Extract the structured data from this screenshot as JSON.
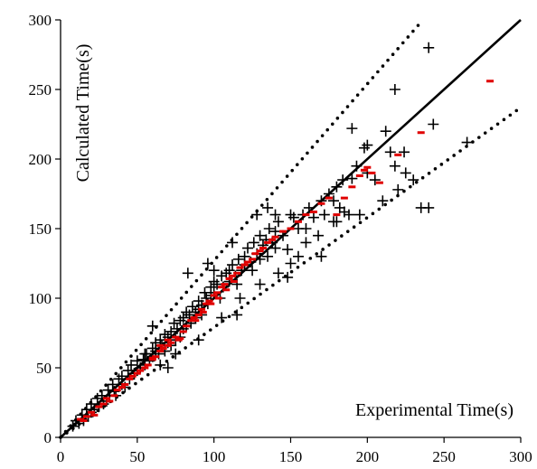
{
  "chart_data": {
    "type": "scatter",
    "xlabel": "Experimental Time(s)",
    "ylabel": "Calculated Time(s)",
    "xlim": [
      0,
      300
    ],
    "ylim": [
      0,
      300
    ],
    "x_ticks": [
      0,
      50,
      100,
      150,
      200,
      250,
      300
    ],
    "y_ticks": [
      0,
      50,
      100,
      150,
      200,
      250,
      300
    ],
    "grid": false,
    "legend": "none",
    "reference_lines": [
      {
        "style": "solid",
        "slope": 1.0,
        "color": "#000000"
      },
      {
        "style": "dotted",
        "slope": 1.27,
        "color": "#000000"
      },
      {
        "style": "dotted",
        "slope": 0.79,
        "color": "#000000"
      }
    ],
    "series": [
      {
        "marker": "plus",
        "color": "#000000",
        "points": [
          [
            8,
            8
          ],
          [
            10,
            12
          ],
          [
            12,
            10
          ],
          [
            14,
            16
          ],
          [
            15,
            12
          ],
          [
            17,
            20
          ],
          [
            18,
            15
          ],
          [
            20,
            24
          ],
          [
            20,
            18
          ],
          [
            22,
            20
          ],
          [
            24,
            28
          ],
          [
            25,
            22
          ],
          [
            27,
            30
          ],
          [
            28,
            24
          ],
          [
            30,
            26
          ],
          [
            31,
            34
          ],
          [
            32,
            30
          ],
          [
            34,
            38
          ],
          [
            35,
            33
          ],
          [
            36,
            30
          ],
          [
            38,
            42
          ],
          [
            40,
            44
          ],
          [
            40,
            38
          ],
          [
            42,
            36
          ],
          [
            44,
            48
          ],
          [
            45,
            42
          ],
          [
            46,
            52
          ],
          [
            48,
            46
          ],
          [
            50,
            55
          ],
          [
            50,
            48
          ],
          [
            52,
            50
          ],
          [
            54,
            56
          ],
          [
            55,
            52
          ],
          [
            56,
            60
          ],
          [
            58,
            55
          ],
          [
            60,
            64
          ],
          [
            60,
            58
          ],
          [
            62,
            68
          ],
          [
            62,
            62
          ],
          [
            64,
            60
          ],
          [
            65,
            70
          ],
          [
            66,
            66
          ],
          [
            68,
            74
          ],
          [
            68,
            62
          ],
          [
            70,
            72
          ],
          [
            70,
            68
          ],
          [
            72,
            76
          ],
          [
            72,
            66
          ],
          [
            74,
            82
          ],
          [
            75,
            70
          ],
          [
            76,
            78
          ],
          [
            78,
            84
          ],
          [
            78,
            72
          ],
          [
            80,
            86
          ],
          [
            80,
            78
          ],
          [
            82,
            90
          ],
          [
            82,
            80
          ],
          [
            84,
            88
          ],
          [
            85,
            82
          ],
          [
            86,
            94
          ],
          [
            88,
            90
          ],
          [
            88,
            86
          ],
          [
            90,
            98
          ],
          [
            90,
            92
          ],
          [
            92,
            95
          ],
          [
            92,
            88
          ],
          [
            94,
            104
          ],
          [
            95,
            100
          ],
          [
            96,
            96
          ],
          [
            98,
            108
          ],
          [
            98,
            102
          ],
          [
            100,
            112
          ],
          [
            100,
            104
          ],
          [
            102,
            110
          ],
          [
            104,
            100
          ],
          [
            105,
            116
          ],
          [
            106,
            108
          ],
          [
            108,
            118
          ],
          [
            110,
            112
          ],
          [
            110,
            120
          ],
          [
            112,
            124
          ],
          [
            114,
            116
          ],
          [
            115,
            110
          ],
          [
            116,
            128
          ],
          [
            118,
            120
          ],
          [
            120,
            130
          ],
          [
            120,
            124
          ],
          [
            122,
            136
          ],
          [
            124,
            126
          ],
          [
            125,
            120
          ],
          [
            126,
            140
          ],
          [
            128,
            132
          ],
          [
            130,
            145
          ],
          [
            130,
            128
          ],
          [
            132,
            138
          ],
          [
            134,
            142
          ],
          [
            135,
            130
          ],
          [
            136,
            150
          ],
          [
            138,
            140
          ],
          [
            140,
            148
          ],
          [
            140,
            136
          ],
          [
            142,
            155
          ],
          [
            145,
            145
          ],
          [
            148,
            135
          ],
          [
            150,
            160
          ],
          [
            152,
            158
          ],
          [
            155,
            150
          ],
          [
            155,
            130
          ],
          [
            158,
            160
          ],
          [
            160,
            140
          ],
          [
            162,
            165
          ],
          [
            165,
            158
          ],
          [
            168,
            145
          ],
          [
            170,
            170
          ],
          [
            172,
            160
          ],
          [
            175,
            175
          ],
          [
            178,
            170
          ],
          [
            180,
            180
          ],
          [
            182,
            165
          ],
          [
            184,
            185
          ],
          [
            185,
            162
          ],
          [
            188,
            160
          ],
          [
            190,
            186
          ],
          [
            193,
            195
          ],
          [
            195,
            160
          ],
          [
            198,
            208
          ],
          [
            200,
            190
          ],
          [
            205,
            185
          ],
          [
            210,
            170
          ],
          [
            215,
            205
          ],
          [
            218,
            195
          ],
          [
            220,
            178
          ],
          [
            225,
            190
          ],
          [
            230,
            185
          ],
          [
            235,
            165
          ],
          [
            240,
            165
          ],
          [
            240,
            280
          ],
          [
            243,
            225
          ],
          [
            148,
            115
          ],
          [
            135,
            165
          ],
          [
            96,
            125
          ],
          [
            112,
            140
          ],
          [
            128,
            160
          ],
          [
            180,
            155
          ],
          [
            170,
            130
          ],
          [
            115,
            88
          ],
          [
            60,
            80
          ],
          [
            55,
            60
          ],
          [
            83,
            118
          ],
          [
            100,
            120
          ],
          [
            117,
            100
          ],
          [
            105,
            86
          ],
          [
            90,
            70
          ],
          [
            75,
            60
          ],
          [
            70,
            50
          ],
          [
            65,
            52
          ],
          [
            130,
            110
          ],
          [
            142,
            118
          ],
          [
            150,
            125
          ],
          [
            190,
            222
          ],
          [
            200,
            210
          ],
          [
            212,
            220
          ],
          [
            218,
            250
          ],
          [
            224,
            205
          ],
          [
            265,
            212
          ],
          [
            178,
            155
          ],
          [
            140,
            160
          ],
          [
            160,
            150
          ]
        ]
      },
      {
        "marker": "dash",
        "color": "#e00000",
        "points": [
          [
            13,
            13
          ],
          [
            15,
            12
          ],
          [
            17,
            15
          ],
          [
            20,
            18
          ],
          [
            22,
            16
          ],
          [
            25,
            22
          ],
          [
            28,
            24
          ],
          [
            30,
            28
          ],
          [
            32,
            26
          ],
          [
            35,
            30
          ],
          [
            37,
            34
          ],
          [
            40,
            36
          ],
          [
            42,
            38
          ],
          [
            45,
            42
          ],
          [
            47,
            44
          ],
          [
            50,
            46
          ],
          [
            52,
            48
          ],
          [
            55,
            50
          ],
          [
            57,
            52
          ],
          [
            60,
            56
          ],
          [
            62,
            58
          ],
          [
            65,
            62
          ],
          [
            67,
            64
          ],
          [
            70,
            66
          ],
          [
            72,
            68
          ],
          [
            75,
            72
          ],
          [
            77,
            70
          ],
          [
            80,
            76
          ],
          [
            82,
            80
          ],
          [
            85,
            84
          ],
          [
            87,
            86
          ],
          [
            90,
            88
          ],
          [
            92,
            92
          ],
          [
            95,
            96
          ],
          [
            97,
            98
          ],
          [
            100,
            102
          ],
          [
            102,
            104
          ],
          [
            105,
            108
          ],
          [
            107,
            110
          ],
          [
            110,
            114
          ],
          [
            112,
            116
          ],
          [
            115,
            118
          ],
          [
            117,
            122
          ],
          [
            120,
            124
          ],
          [
            122,
            126
          ],
          [
            125,
            128
          ],
          [
            127,
            132
          ],
          [
            130,
            134
          ],
          [
            132,
            136
          ],
          [
            135,
            140
          ],
          [
            138,
            142
          ],
          [
            140,
            144
          ],
          [
            145,
            148
          ],
          [
            150,
            150
          ],
          [
            155,
            155
          ],
          [
            160,
            160
          ],
          [
            165,
            162
          ],
          [
            170,
            168
          ],
          [
            175,
            172
          ],
          [
            180,
            160
          ],
          [
            185,
            172
          ],
          [
            190,
            180
          ],
          [
            195,
            188
          ],
          [
            198,
            192
          ],
          [
            200,
            194
          ],
          [
            203,
            190
          ],
          [
            208,
            183
          ],
          [
            220,
            203
          ],
          [
            235,
            219
          ],
          [
            280,
            256
          ],
          [
            60,
            57
          ],
          [
            65,
            66
          ],
          [
            70,
            70
          ],
          [
            78,
            71
          ],
          [
            88,
            84
          ],
          [
            93,
            90
          ],
          [
            98,
            96
          ],
          [
            103,
            100
          ],
          [
            108,
            106
          ],
          [
            113,
            112
          ]
        ]
      }
    ]
  }
}
